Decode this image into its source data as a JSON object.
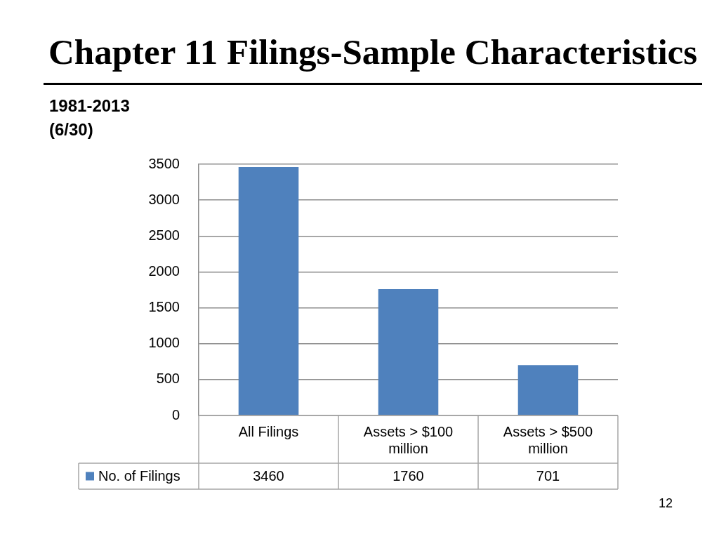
{
  "chart_data": {
    "type": "bar",
    "title": "Chapter 11 Filings-Sample Characteristics",
    "subtitle": "1981-2013 (6/30)",
    "annotations": [
      "12"
    ],
    "categories": [
      "All Filings",
      "Assets > $100 million",
      "Assets > $500 million"
    ],
    "series": [
      {
        "name": "No. of Filings",
        "color": "#4f81bd",
        "values": [
          3460,
          1760,
          701
        ]
      }
    ],
    "ylim": [
      0,
      3500
    ],
    "yticks": [
      0,
      500,
      1000,
      1500,
      2000,
      2500,
      3000,
      3500
    ],
    "grid": "y",
    "legend": "bottom",
    "data_labels": true
  }
}
